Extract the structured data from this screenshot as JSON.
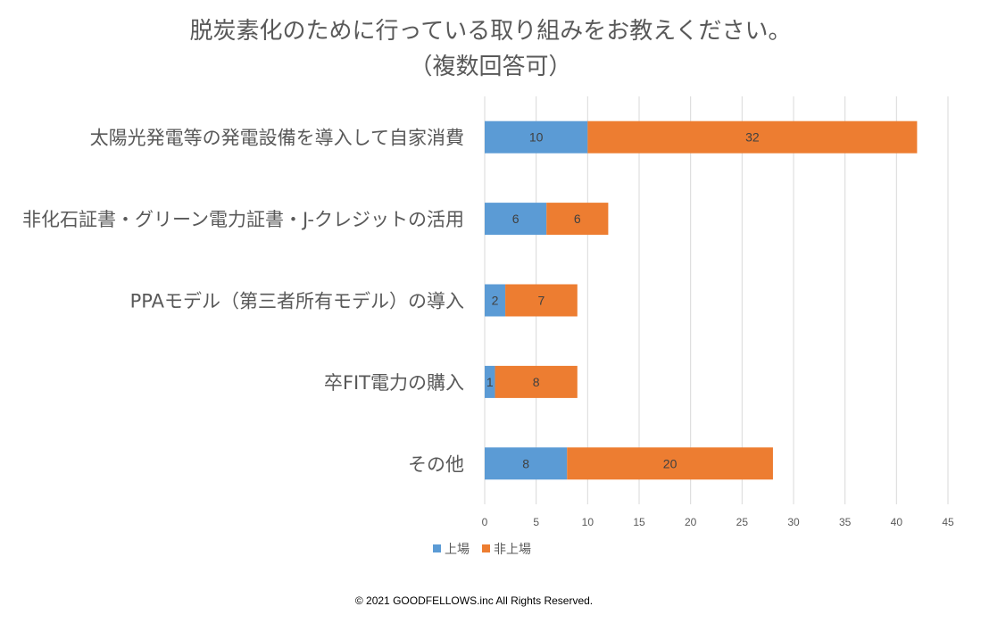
{
  "chart_data": {
    "type": "bar",
    "orientation": "horizontal",
    "stacked": true,
    "title": [
      "脱炭素化のために行っている取り組みをお教えください。",
      "（複数回答可）"
    ],
    "categories": [
      "太陽光発電等の発電設備を導入して自家消費",
      "非化石証書・グリーン電力証書・J-クレジットの活用",
      "PPAモデル（第三者所有モデル）の導入",
      "卒FIT電力の購入",
      "その他"
    ],
    "series": [
      {
        "name": "上場",
        "color": "#5B9BD5",
        "values": [
          10,
          6,
          2,
          1,
          8
        ]
      },
      {
        "name": "非上場",
        "color": "#ED7D31",
        "values": [
          32,
          6,
          7,
          8,
          20
        ]
      }
    ],
    "xlim": [
      0,
      45
    ],
    "xticks": [
      0,
      5,
      10,
      15,
      20,
      25,
      30,
      35,
      40,
      45
    ],
    "grid": true,
    "data_labels": true,
    "legend": "bottom"
  },
  "footer": {
    "copyright": "© 2021 GOODFELLOWS.inc   All Rights Reserved."
  }
}
